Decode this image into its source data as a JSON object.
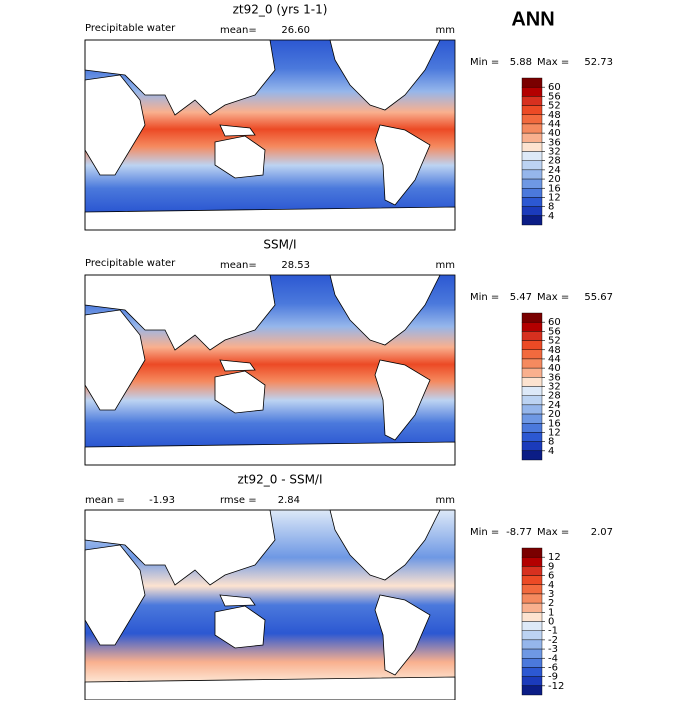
{
  "header": {
    "season": "ANN"
  },
  "panels": [
    {
      "title": "zt92_0 (yrs 1-1)",
      "variable": "Precipitable water",
      "stats": [
        {
          "label": "mean=",
          "value": "26.60"
        }
      ],
      "units": "mm",
      "min_label": "Min =",
      "min": "5.88",
      "max_label": "Max =",
      "max": "52.73",
      "levels": [
        60,
        56,
        52,
        48,
        44,
        40,
        36,
        32,
        28,
        24,
        20,
        16,
        12,
        8,
        4
      ],
      "colors": [
        "#7a0000",
        "#b30000",
        "#d7301f",
        "#ec4a25",
        "#f26a3e",
        "#f58a5f",
        "#f9b08e",
        "#fde3d0",
        "#dde9f8",
        "#bcd3f2",
        "#95b6eb",
        "#6e98e4",
        "#4b79dc",
        "#2c58d2",
        "#1b3bbb",
        "#0b1d86"
      ]
    },
    {
      "title": "SSM/I",
      "variable": "Precipitable water",
      "stats": [
        {
          "label": "mean=",
          "value": "28.53"
        }
      ],
      "units": "mm",
      "min_label": "Min =",
      "min": "5.47",
      "max_label": "Max =",
      "max": "55.67",
      "levels": [
        60,
        56,
        52,
        48,
        44,
        40,
        36,
        32,
        28,
        24,
        20,
        16,
        12,
        8,
        4
      ],
      "colors": [
        "#7a0000",
        "#b30000",
        "#d7301f",
        "#ec4a25",
        "#f26a3e",
        "#f58a5f",
        "#f9b08e",
        "#fde3d0",
        "#dde9f8",
        "#bcd3f2",
        "#95b6eb",
        "#6e98e4",
        "#4b79dc",
        "#2c58d2",
        "#1b3bbb",
        "#0b1d86"
      ]
    },
    {
      "title": "zt92_0 - SSM/I",
      "stats": [
        {
          "label": "mean =",
          "value": "-1.93"
        },
        {
          "label": "rmse =",
          "value": "2.84"
        }
      ],
      "units": "mm",
      "min_label": "Min =",
      "min": "-8.77",
      "max_label": "Max =",
      "max": "2.07",
      "levels": [
        12,
        9,
        6,
        4,
        3,
        2,
        1,
        0,
        -1,
        -2,
        -3,
        -4,
        -6,
        -9,
        -12
      ],
      "colors": [
        "#7a0000",
        "#b30000",
        "#d7301f",
        "#ec4a25",
        "#f26a3e",
        "#f58a5f",
        "#f9b08e",
        "#fde3d0",
        "#dde9f8",
        "#bcd3f2",
        "#95b6eb",
        "#6e98e4",
        "#4b79dc",
        "#2c58d2",
        "#1b3bbb",
        "#0b1d86"
      ]
    }
  ]
}
